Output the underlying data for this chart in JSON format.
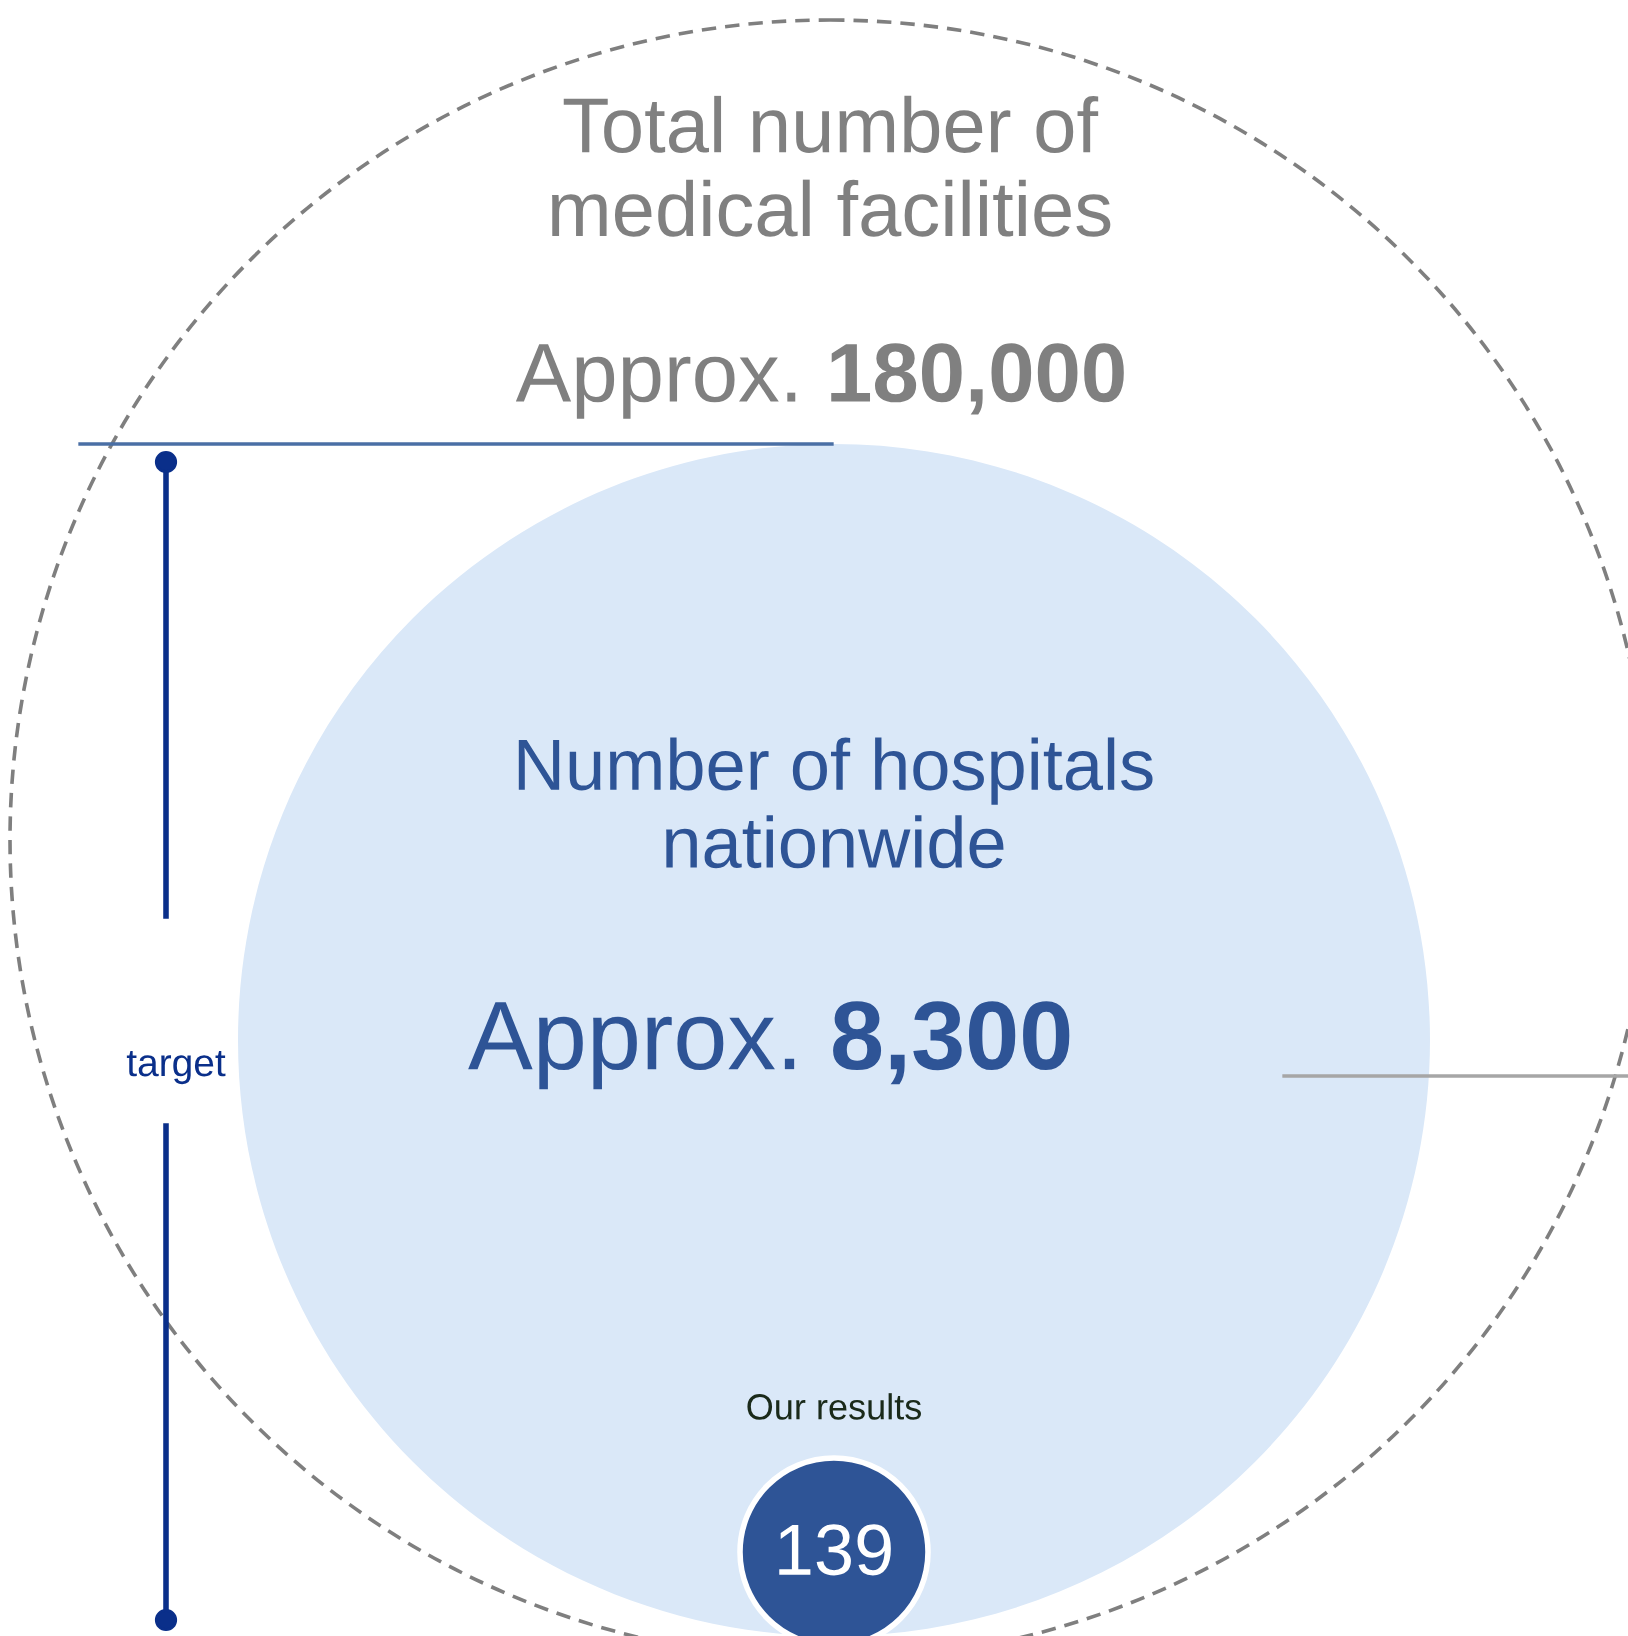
{
  "chart_data": {
    "type": "other",
    "categories": [
      "Total number of\nmedical facilities",
      "Number of hospitals\nnationwide",
      "Our results"
    ],
    "values": [
      180000,
      8300,
      139
    ],
    "value_labels": [
      "Approx. 180,000",
      "Approx. 8,300",
      "139"
    ],
    "colors": [
      "#7f7f7f",
      "#dae8f8",
      "#2e5496"
    ],
    "annotations": [
      "target"
    ],
    "legend": false
  }
}
